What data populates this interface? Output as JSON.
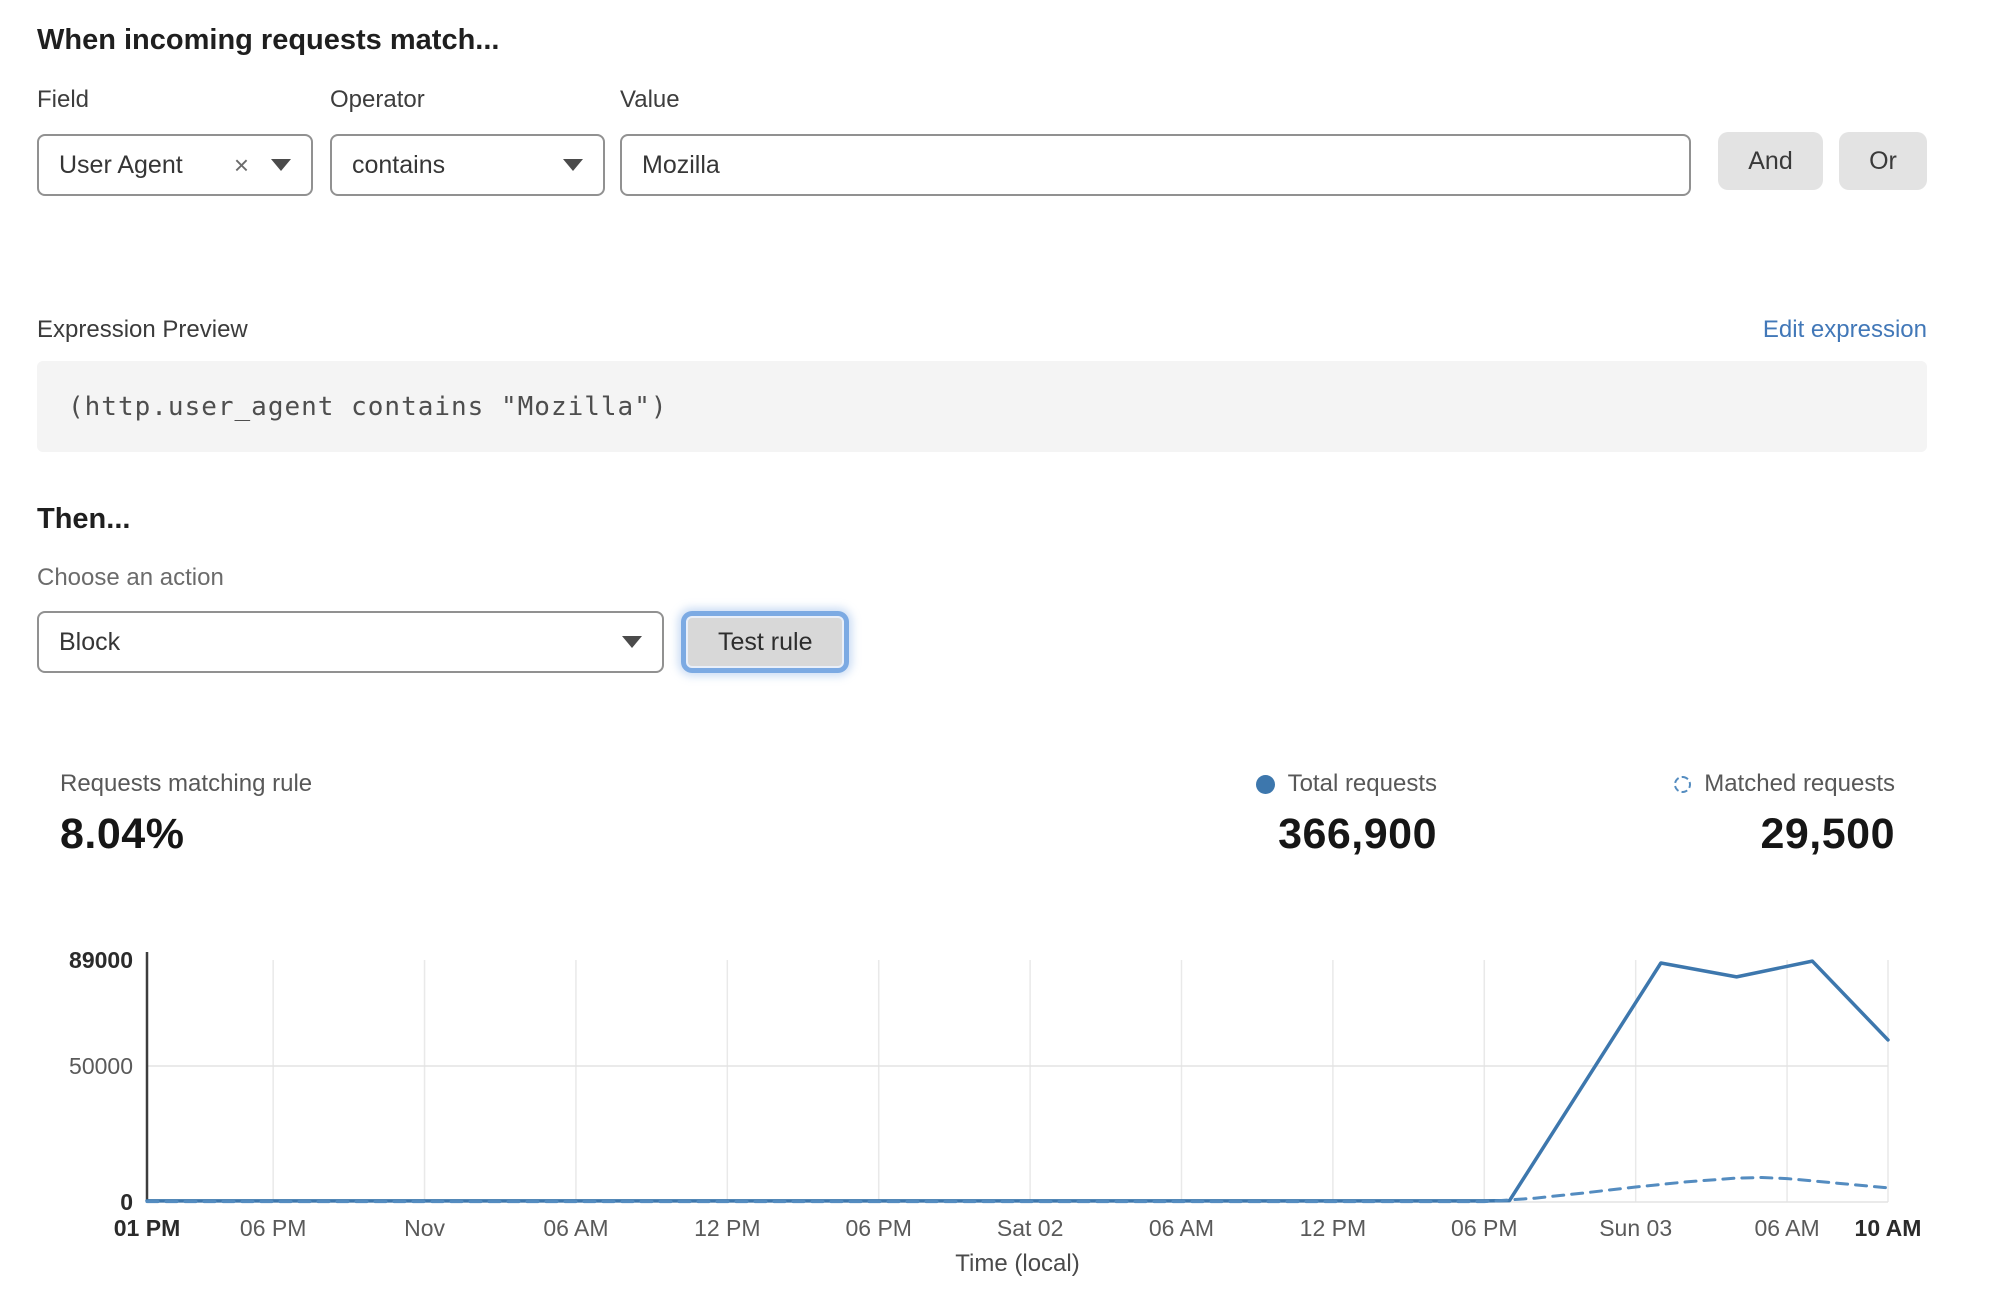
{
  "header": {
    "title": "When incoming requests match..."
  },
  "rule_builder": {
    "field": {
      "label": "Field",
      "value": "User Agent",
      "clear_icon": "×"
    },
    "operator": {
      "label": "Operator",
      "value": "contains"
    },
    "value": {
      "label": "Value",
      "value": "Mozilla"
    },
    "and_label": "And",
    "or_label": "Or"
  },
  "expression": {
    "label": "Expression Preview",
    "edit_link": "Edit expression",
    "code": "(http.user_agent contains \"Mozilla\")"
  },
  "then": {
    "title": "Then...",
    "action_label": "Choose an action",
    "action_value": "Block",
    "test_button_label": "Test rule"
  },
  "stats": {
    "matching": {
      "label": "Requests matching rule",
      "value": "8.04%"
    },
    "total": {
      "label": "Total requests",
      "value": "366,900"
    },
    "matched": {
      "label": "Matched requests",
      "value": "29,500"
    }
  },
  "colors": {
    "line_solid": "#3d77ad",
    "line_dashed": "#548cc0",
    "link_blue": "#4278b8",
    "grid": "#e9e9e9",
    "axis": "#3d3d3d"
  },
  "chart_data": {
    "type": "line",
    "title": "",
    "xlabel": "Time (local)",
    "ylabel": "",
    "ylim": [
      0,
      89000
    ],
    "grid": true,
    "legend_position": "above-chart-right",
    "yticks": [
      {
        "value": 0,
        "label": "0",
        "bold": true
      },
      {
        "value": 50000,
        "label": "50000",
        "bold": false
      },
      {
        "value": 89000,
        "label": "89000",
        "bold": true
      }
    ],
    "x_unit": "hours from Fri 01 PM",
    "x_range_hours": [
      0,
      69
    ],
    "xticks": [
      {
        "hour": 0,
        "label": "01 PM",
        "bold": true
      },
      {
        "hour": 5,
        "label": "06 PM",
        "bold": false
      },
      {
        "hour": 11,
        "label": "Nov",
        "bold": false
      },
      {
        "hour": 17,
        "label": "06 AM",
        "bold": false
      },
      {
        "hour": 23,
        "label": "12 PM",
        "bold": false
      },
      {
        "hour": 29,
        "label": "06 PM",
        "bold": false
      },
      {
        "hour": 35,
        "label": "Sat 02",
        "bold": false
      },
      {
        "hour": 41,
        "label": "06 AM",
        "bold": false
      },
      {
        "hour": 47,
        "label": "12 PM",
        "bold": false
      },
      {
        "hour": 53,
        "label": "06 PM",
        "bold": false
      },
      {
        "hour": 59,
        "label": "Sun 03",
        "bold": false
      },
      {
        "hour": 65,
        "label": "06 AM",
        "bold": false
      },
      {
        "hour": 69,
        "label": "10 AM",
        "bold": true
      }
    ],
    "series": [
      {
        "name": "Total requests",
        "style": "solid",
        "color": "#3d77ad",
        "points": [
          [
            0,
            400
          ],
          [
            5,
            400
          ],
          [
            11,
            400
          ],
          [
            17,
            400
          ],
          [
            23,
            400
          ],
          [
            29,
            400
          ],
          [
            35,
            400
          ],
          [
            41,
            400
          ],
          [
            47,
            400
          ],
          [
            53,
            400
          ],
          [
            54,
            500
          ],
          [
            60,
            87900
          ],
          [
            63,
            82800
          ],
          [
            66,
            88600
          ],
          [
            69,
            59600
          ]
        ]
      },
      {
        "name": "Matched requests",
        "style": "dashed",
        "color": "#548cc0",
        "points": [
          [
            0,
            150
          ],
          [
            5,
            150
          ],
          [
            11,
            150
          ],
          [
            17,
            150
          ],
          [
            23,
            150
          ],
          [
            29,
            150
          ],
          [
            35,
            150
          ],
          [
            41,
            150
          ],
          [
            47,
            150
          ],
          [
            53,
            150
          ],
          [
            55,
            1400
          ],
          [
            57,
            3400
          ],
          [
            59,
            5500
          ],
          [
            61,
            7400
          ],
          [
            63,
            8800
          ],
          [
            64,
            9000
          ],
          [
            65,
            8600
          ],
          [
            67,
            6900
          ],
          [
            69,
            5200
          ]
        ]
      }
    ]
  }
}
